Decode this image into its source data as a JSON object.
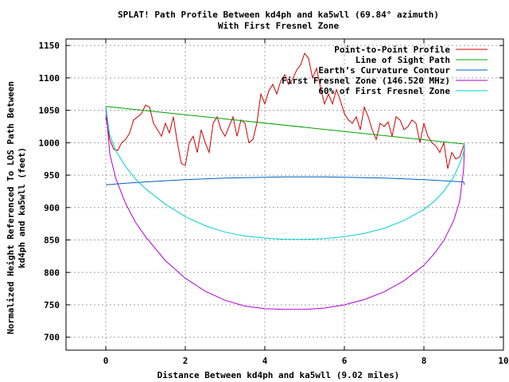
{
  "chart_data": {
    "type": "line",
    "title": "SPLAT! Path Profile Between kd4ph and ka5wll (69.84° azimuth)",
    "subtitle": "With First Fresnel Zone",
    "xlabel": "Distance Between kd4ph and ka5wll (9.02 miles)",
    "ylabel_lines": [
      "Normalized Height Referenced To LOS Path Between",
      "kd4ph and ka5wll (feet)"
    ],
    "xlim": [
      -1,
      10
    ],
    "ylim": [
      680,
      1160
    ],
    "x_ticks": [
      0,
      2,
      4,
      6,
      8,
      10
    ],
    "y_ticks": [
      700,
      750,
      800,
      850,
      900,
      950,
      1000,
      1050,
      1100,
      1150
    ],
    "grid": true,
    "legend_position": "top-right",
    "series": [
      {
        "name": "Point-to-Point Profile",
        "color": "#d00000",
        "x": [
          0.0,
          0.1,
          0.2,
          0.3,
          0.4,
          0.5,
          0.6,
          0.7,
          0.8,
          0.9,
          1.0,
          1.1,
          1.2,
          1.3,
          1.4,
          1.5,
          1.6,
          1.7,
          1.8,
          1.9,
          2.0,
          2.1,
          2.2,
          2.3,
          2.4,
          2.5,
          2.6,
          2.7,
          2.8,
          2.9,
          3.0,
          3.1,
          3.2,
          3.3,
          3.4,
          3.5,
          3.6,
          3.7,
          3.8,
          3.9,
          4.0,
          4.1,
          4.2,
          4.3,
          4.4,
          4.5,
          4.6,
          4.7,
          4.8,
          4.9,
          5.0,
          5.1,
          5.2,
          5.3,
          5.4,
          5.5,
          5.6,
          5.7,
          5.8,
          5.9,
          6.0,
          6.1,
          6.2,
          6.3,
          6.4,
          6.5,
          6.6,
          6.7,
          6.8,
          6.9,
          7.0,
          7.1,
          7.2,
          7.3,
          7.4,
          7.5,
          7.6,
          7.7,
          7.8,
          7.9,
          8.0,
          8.1,
          8.2,
          8.3,
          8.4,
          8.5,
          8.6,
          8.7,
          8.8,
          8.9,
          9.0
        ],
        "values": [
          1040,
          1005,
          990,
          988,
          1000,
          1005,
          1015,
          1035,
          1040,
          1045,
          1058,
          1055,
          1030,
          1020,
          1010,
          1030,
          1015,
          1040,
          1000,
          968,
          965,
          1000,
          1010,
          985,
          1020,
          1000,
          985,
          1030,
          1040,
          1020,
          1010,
          1025,
          1040,
          1010,
          1035,
          1030,
          1000,
          1005,
          1030,
          1075,
          1060,
          1080,
          1090,
          1075,
          1095,
          1105,
          1090,
          1098,
          1112,
          1120,
          1138,
          1130,
          1100,
          1115,
          1085,
          1060,
          1075,
          1060,
          1082,
          1065,
          1045,
          1035,
          1030,
          1040,
          1020,
          1055,
          1040,
          1020,
          1005,
          1030,
          1025,
          1032,
          1010,
          1040,
          1035,
          1020,
          1025,
          1035,
          1030,
          1000,
          1030,
          1010,
          1000,
          995,
          985,
          1000,
          960,
          985,
          975,
          978,
          996
        ]
      },
      {
        "name": "Line of Sight Path",
        "color": "#00a000",
        "x": [
          0,
          9.02
        ],
        "values": [
          1056,
          998
        ]
      },
      {
        "name": "Earth’s Curvature Contour",
        "color": "#0060c0",
        "x": [
          0,
          0.5,
          1,
          1.5,
          2,
          2.5,
          3,
          3.5,
          4,
          4.5,
          5,
          5.5,
          6,
          6.5,
          7,
          7.5,
          8,
          8.5,
          9,
          9.02
        ],
        "values": [
          935,
          937.4,
          939.5,
          941.3,
          942.9,
          944.3,
          945.4,
          946.2,
          946.8,
          947.2,
          947.3,
          947.2,
          946.8,
          946.2,
          945.4,
          944.3,
          942.9,
          941.3,
          939.5,
          935
        ]
      },
      {
        "name": "First Fresnel Zone (146.520 MHz)",
        "color": "#b000d0",
        "x": [
          0,
          0.1,
          0.25,
          0.5,
          0.75,
          1,
          1.5,
          2,
          2.5,
          3,
          3.5,
          4,
          4.5,
          5,
          5.5,
          6,
          6.5,
          7,
          7.5,
          8,
          8.25,
          8.5,
          8.75,
          8.9,
          9.0,
          9.02
        ],
        "values": [
          1056,
          983,
          945,
          906,
          877,
          855,
          818,
          791,
          771,
          757,
          748,
          744,
          743,
          743,
          745,
          750,
          758,
          770,
          787,
          811,
          828,
          849,
          880,
          910,
          960,
          998
        ]
      },
      {
        "name": "60% of First Fresnel Zone",
        "color": "#00d0d0",
        "x": [
          0,
          0.1,
          0.25,
          0.5,
          0.75,
          1,
          1.5,
          2,
          2.5,
          3,
          3.5,
          4,
          4.5,
          5,
          5.5,
          6,
          6.5,
          7,
          7.5,
          8,
          8.25,
          8.5,
          8.75,
          8.9,
          9.0,
          9.02
        ],
        "values": [
          1056,
          1012,
          988,
          963,
          944,
          929,
          905,
          886,
          872,
          862,
          856,
          853,
          851,
          851,
          852,
          855,
          860,
          868,
          880,
          897,
          909,
          925,
          947,
          968,
          985,
          998
        ]
      }
    ]
  }
}
